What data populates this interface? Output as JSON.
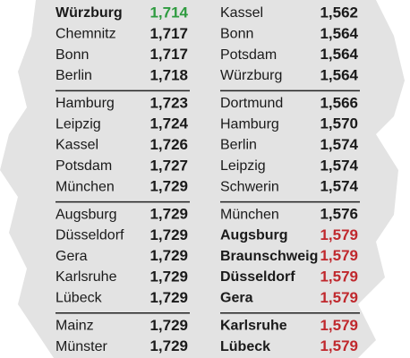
{
  "left": {
    "groups": [
      [
        {
          "city": "Würzburg",
          "price": "1,714",
          "bold": true,
          "color": "#2e9b3f"
        },
        {
          "city": "Chemnitz",
          "price": "1,717"
        },
        {
          "city": "Bonn",
          "price": "1,717"
        },
        {
          "city": "Berlin",
          "price": "1,718"
        }
      ],
      [
        {
          "city": "Hamburg",
          "price": "1,723"
        },
        {
          "city": "Leipzig",
          "price": "1,724"
        },
        {
          "city": "Kassel",
          "price": "1,726"
        },
        {
          "city": "Potsdam",
          "price": "1,727"
        },
        {
          "city": "München",
          "price": "1,729"
        }
      ],
      [
        {
          "city": "Augsburg",
          "price": "1,729"
        },
        {
          "city": "Düsseldorf",
          "price": "1,729"
        },
        {
          "city": "Gera",
          "price": "1,729"
        },
        {
          "city": "Karlsruhe",
          "price": "1,729"
        },
        {
          "city": "Lübeck",
          "price": "1,729"
        }
      ],
      [
        {
          "city": "Mainz",
          "price": "1,729"
        },
        {
          "city": "Münster",
          "price": "1,729"
        }
      ]
    ]
  },
  "right": {
    "groups": [
      [
        {
          "city": "Kassel",
          "price": "1,562"
        },
        {
          "city": "Bonn",
          "price": "1,564"
        },
        {
          "city": "Potsdam",
          "price": "1,564"
        },
        {
          "city": "Würzburg",
          "price": "1,564"
        }
      ],
      [
        {
          "city": "Dortmund",
          "price": "1,566"
        },
        {
          "city": "Hamburg",
          "price": "1,570"
        },
        {
          "city": "Berlin",
          "price": "1,574"
        },
        {
          "city": "Leipzig",
          "price": "1,574"
        },
        {
          "city": "Schwerin",
          "price": "1,574"
        }
      ],
      [
        {
          "city": "München",
          "price": "1,576"
        },
        {
          "city": "Augsburg",
          "price": "1,579",
          "bold": true,
          "color": "#c0282d"
        },
        {
          "city": "Braunschweig",
          "price": "1,579",
          "bold": true,
          "color": "#c0282d"
        },
        {
          "city": "Düsseldorf",
          "price": "1,579",
          "bold": true,
          "color": "#c0282d"
        },
        {
          "city": "Gera",
          "price": "1,579",
          "bold": true,
          "color": "#c0282d"
        }
      ],
      [
        {
          "city": "Karlsruhe",
          "price": "1,579",
          "bold": true,
          "color": "#c0282d"
        },
        {
          "city": "Lübeck",
          "price": "1,579",
          "bold": true,
          "color": "#c0282d"
        }
      ]
    ]
  }
}
